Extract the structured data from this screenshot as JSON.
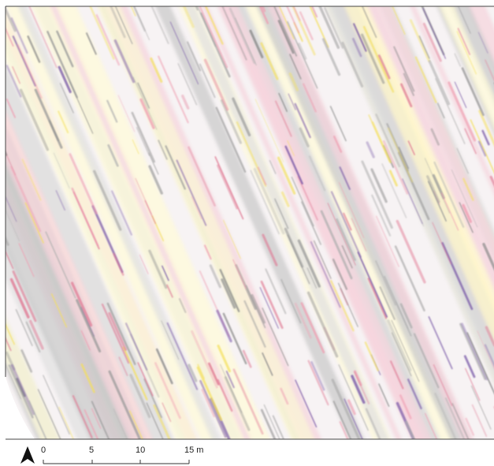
{
  "scale_bar": {
    "labels": [
      "0",
      "5",
      "10",
      "15 m"
    ]
  }
}
